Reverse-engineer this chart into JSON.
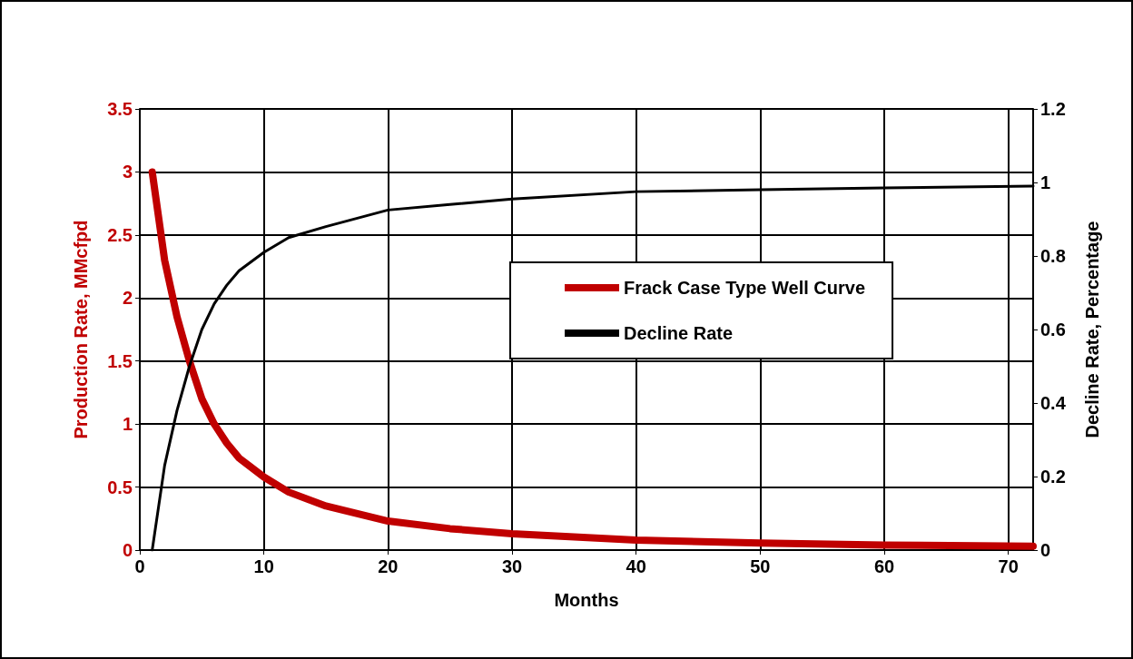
{
  "chart_data": {
    "type": "line",
    "xlabel": "Months",
    "ylabel": "Production Rate, MMcfpd",
    "y2label": "Decline Rate, Percentage",
    "x": [
      1,
      2,
      3,
      4,
      5,
      6,
      7,
      8,
      10,
      12,
      15,
      20,
      25,
      30,
      40,
      50,
      60,
      72
    ],
    "series": [
      {
        "name": "Frack Case Type Well Curve",
        "color": "#c00000",
        "values": [
          3,
          2.3,
          1.85,
          1.5,
          1.2,
          1.0,
          0.85,
          0.73,
          0.58,
          0.46,
          0.35,
          0.23,
          0.17,
          0.13,
          0.08,
          0.055,
          0.04,
          0.03
        ]
      },
      {
        "name": "Decline Rate",
        "color": "#000000",
        "axis": "y2",
        "values": [
          0,
          0.23,
          0.38,
          0.5,
          0.6,
          0.67,
          0.72,
          0.76,
          0.81,
          0.85,
          0.88,
          0.925,
          0.94,
          0.955,
          0.975,
          0.98,
          0.985,
          0.99
        ]
      }
    ],
    "xlim": [
      0,
      72
    ],
    "xticks": [
      0,
      10,
      20,
      30,
      40,
      50,
      60,
      70
    ],
    "ylim": [
      0,
      3.5
    ],
    "yticks": [
      0,
      0.5,
      1,
      1.5,
      2,
      2.5,
      3,
      3.5
    ],
    "y2lim": [
      0,
      1.2
    ],
    "y2ticks": [
      0,
      0.2,
      0.4,
      0.6,
      0.8,
      1,
      1.2
    ],
    "grid": true,
    "legend": "center",
    "marker": "none",
    "line_style": "solid"
  }
}
